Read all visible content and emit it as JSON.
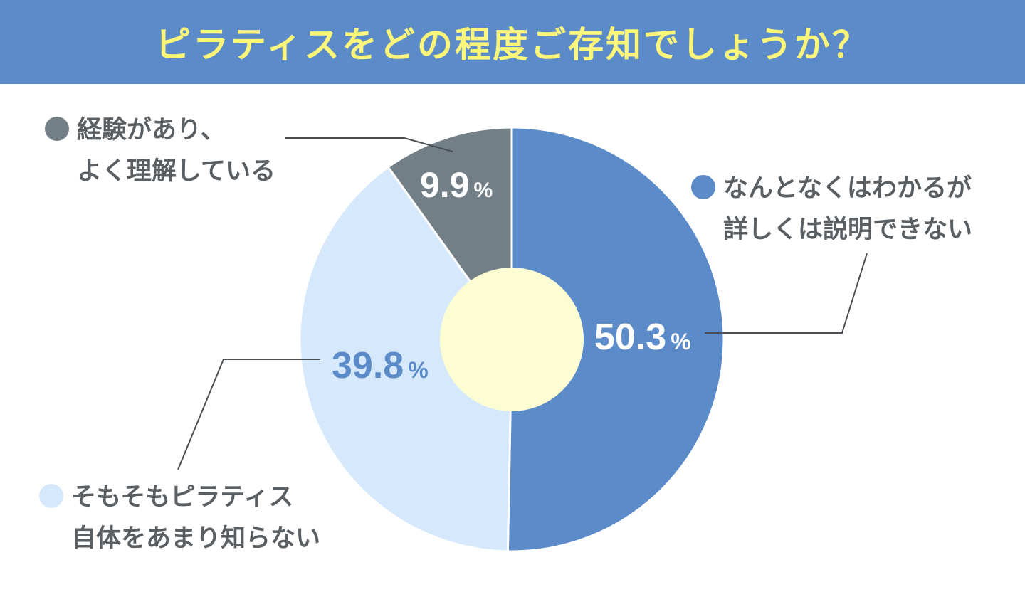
{
  "title": "ピラティスをどの程度ご存知でしょうか？",
  "colors": {
    "header_bg": "#5b8bc9",
    "title_text": "#fbf57a",
    "center_circle": "#fdfdd4",
    "label_text": "#5a5f63"
  },
  "chart_data": {
    "type": "pie",
    "title": "ピラティスをどの程度ご存知でしょうか？",
    "unit": "%",
    "slices": [
      {
        "value": 50.3,
        "value_label": "50.3",
        "label_lines": [
          "なんとなくはわかるが",
          "詳しくは説明できない"
        ],
        "color": "#5b8bc9",
        "value_color": "#ffffff"
      },
      {
        "value": 39.8,
        "value_label": "39.8",
        "label_lines": [
          "そもそもピラティス",
          "自体をあまり知らない"
        ],
        "color": "#d6e9fc",
        "value_color": "#5b8bc9"
      },
      {
        "value": 9.9,
        "value_label": "9.9",
        "label_lines": [
          "経験があり、",
          "よく理解している"
        ],
        "color": "#737f87",
        "value_color": "#ffffff"
      }
    ]
  }
}
